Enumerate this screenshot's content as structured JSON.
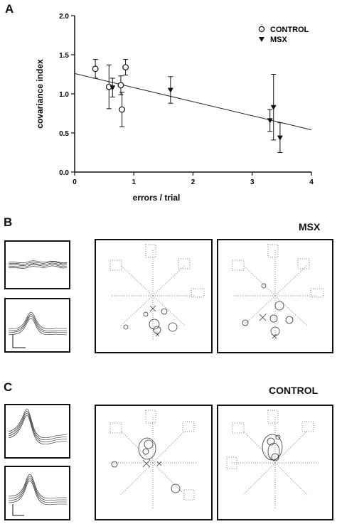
{
  "panels": {
    "a": "A",
    "b": "B",
    "c": "C"
  },
  "group_labels": {
    "b": "MSX",
    "c": "CONTROL"
  },
  "chart_data": {
    "type": "scatter",
    "xlabel": "errors / trial",
    "ylabel": "covariance index",
    "xlim": [
      0,
      4
    ],
    "ylim": [
      0,
      2
    ],
    "xticks": [
      "0",
      "1",
      "2",
      "3",
      "4"
    ],
    "yticks": [
      "0.0",
      "0.5",
      "1.0",
      "1.5",
      "2.0"
    ],
    "legend_position": "top-right",
    "series": [
      {
        "name": "CONTROL",
        "marker": "open-circle",
        "points": [
          {
            "x": 0.35,
            "y": 1.32,
            "err": 0.12
          },
          {
            "x": 0.58,
            "y": 1.09,
            "err": 0.28
          },
          {
            "x": 0.78,
            "y": 1.11,
            "err": 0.12
          },
          {
            "x": 0.8,
            "y": 0.8,
            "err": 0.22
          },
          {
            "x": 0.86,
            "y": 1.34,
            "err": 0.1
          }
        ]
      },
      {
        "name": "MSX",
        "marker": "filled-triangle-down",
        "points": [
          {
            "x": 0.64,
            "y": 1.08,
            "err": 0.12
          },
          {
            "x": 1.62,
            "y": 1.05,
            "err": 0.17
          },
          {
            "x": 3.3,
            "y": 0.66,
            "err": 0.14
          },
          {
            "x": 3.36,
            "y": 0.83,
            "err": 0.42
          },
          {
            "x": 3.47,
            "y": 0.44,
            "err": 0.19
          }
        ]
      }
    ],
    "fit_line": {
      "x": [
        0,
        4
      ],
      "y": [
        1.26,
        0.54
      ]
    }
  }
}
